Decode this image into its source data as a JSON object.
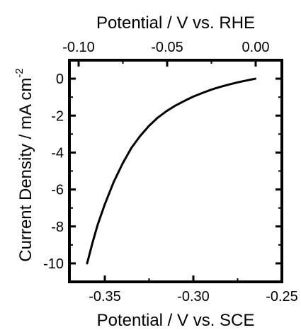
{
  "chart_data": {
    "type": "line",
    "title": "",
    "xlabel": "Potential / V vs. SCE",
    "x2label": "Potential / V vs. RHE",
    "ylabel": "Current Density / mA cm",
    "ylabel_superscript": "-2",
    "xlim": [
      -0.37,
      -0.25
    ],
    "x2lim": [
      -0.1052,
      0.0148
    ],
    "ylim": [
      -11,
      1
    ],
    "xticks": [
      -0.35,
      -0.3,
      -0.25
    ],
    "xtick_labels": [
      "-0.35",
      "-0.30",
      "-0.25"
    ],
    "x2ticks": [
      -0.1,
      -0.05,
      0.0
    ],
    "x2tick_labels": [
      "-0.10",
      "-0.05",
      "0.00"
    ],
    "yticks": [
      0,
      -2,
      -4,
      -6,
      -8,
      -10
    ],
    "ytick_labels": [
      "0",
      "-2",
      "-4",
      "-6",
      "-8",
      "-10"
    ],
    "grid": false,
    "series": [
      {
        "color": "#000000",
        "x": [
          -0.36,
          -0.357,
          -0.354,
          -0.35,
          -0.345,
          -0.34,
          -0.335,
          -0.33,
          -0.325,
          -0.32,
          -0.315,
          -0.31,
          -0.305,
          -0.3,
          -0.295,
          -0.29,
          -0.285,
          -0.28,
          -0.275,
          -0.27,
          -0.265
        ],
        "y": [
          -10.0,
          -8.9,
          -7.9,
          -6.8,
          -5.6,
          -4.6,
          -3.75,
          -3.1,
          -2.55,
          -2.1,
          -1.75,
          -1.45,
          -1.2,
          -0.97,
          -0.78,
          -0.6,
          -0.45,
          -0.32,
          -0.2,
          -0.1,
          0.0
        ]
      }
    ]
  }
}
